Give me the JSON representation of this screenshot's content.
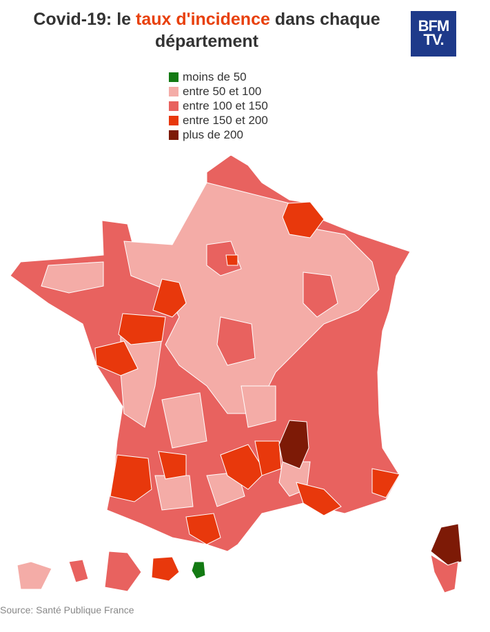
{
  "header": {
    "title_start": "Covid-19: le ",
    "title_highlight": "taux d'incidence",
    "title_end": " dans chaque département",
    "highlight_color": "#e8400c",
    "logo_line1": "BFM",
    "logo_line2": "TV."
  },
  "legend": {
    "items": [
      {
        "label": "moins de 50",
        "color": "#137a13"
      },
      {
        "label": "entre 50 et 100",
        "color": "#f4aca7"
      },
      {
        "label": "entre 100 et 150",
        "color": "#e8625f"
      },
      {
        "label": "entre 150 et 200",
        "color": "#e8380c"
      },
      {
        "label": "plus de 200",
        "color": "#7d1a06"
      }
    ]
  },
  "source": "Source: Santé Publique France"
}
